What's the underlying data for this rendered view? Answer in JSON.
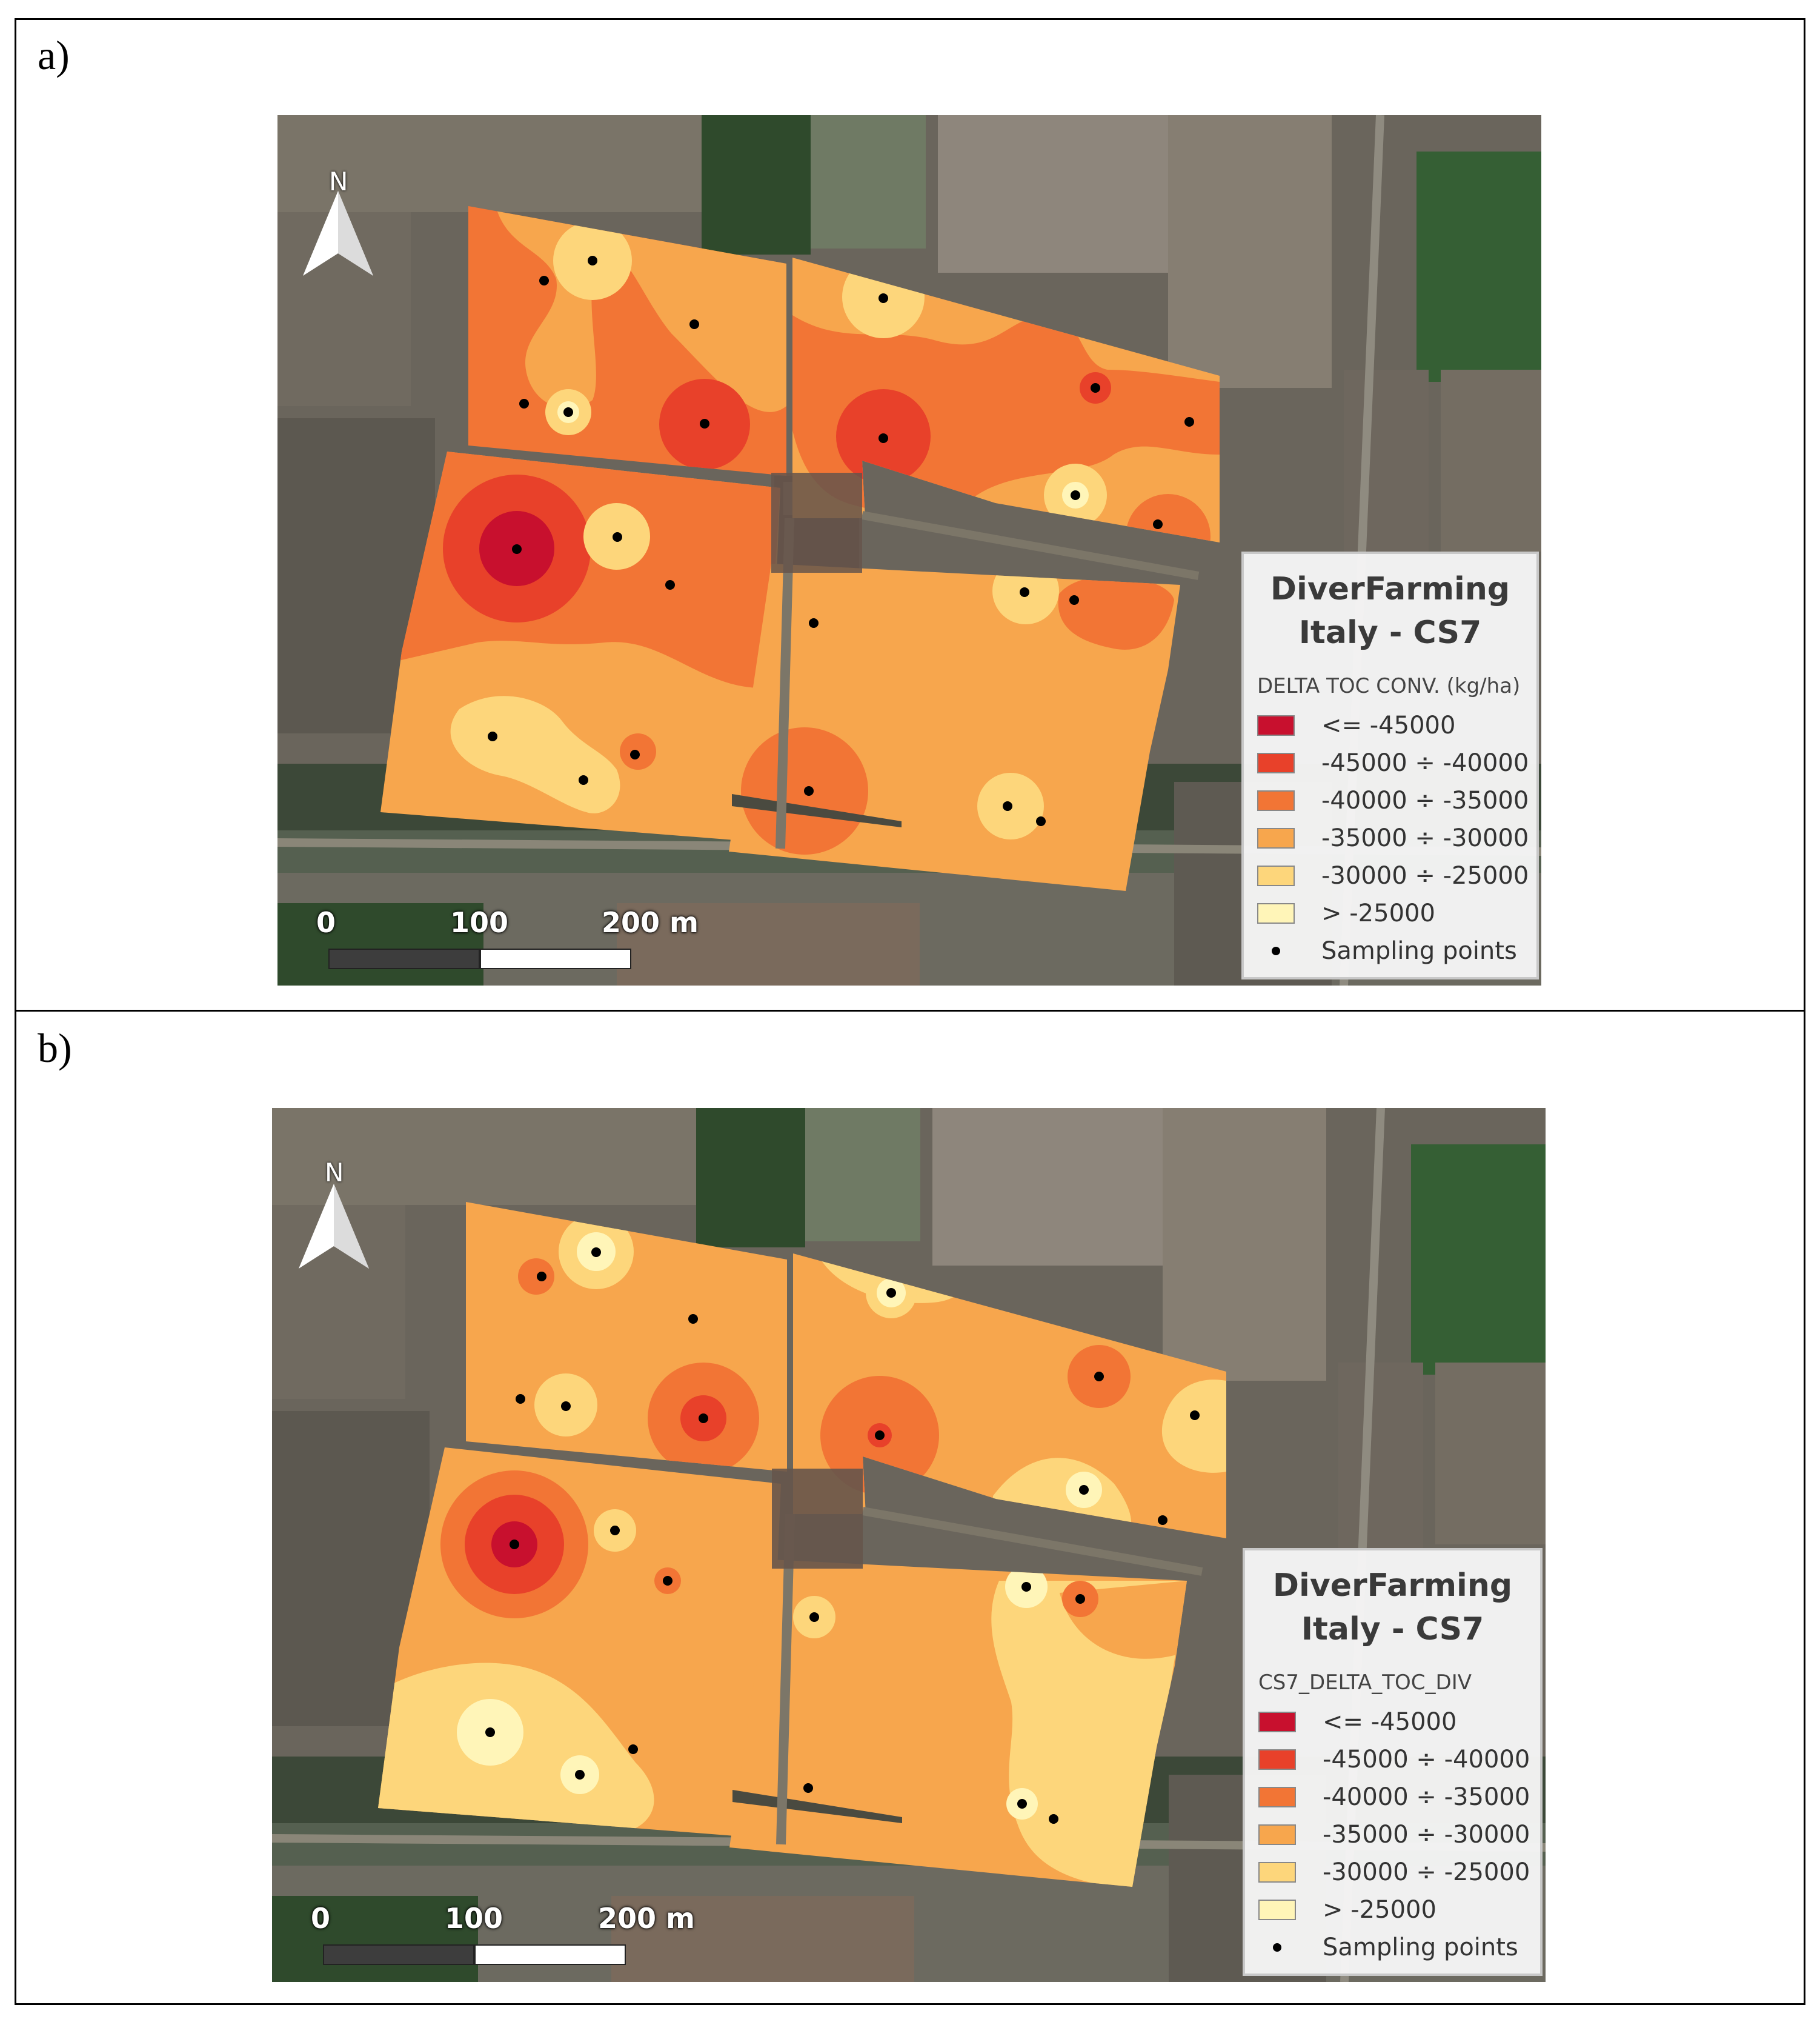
{
  "panels": [
    {
      "label": "a)",
      "legend": {
        "title_line1": "DiverFarming",
        "title_line2": "Italy - CS7",
        "field": "DELTA TOC CONV. (kg/ha)",
        "classes": [
          {
            "label": "<= -45000",
            "color": "#c8102e"
          },
          {
            "label": "-45000 ÷ -40000",
            "color": "#e8412a"
          },
          {
            "label": "-40000 ÷ -35000",
            "color": "#f27535"
          },
          {
            "label": "-35000 ÷ -30000",
            "color": "#f7a64d"
          },
          {
            "label": "-30000 ÷ -25000",
            "color": "#fdd67b"
          },
          {
            "label": "> -25000",
            "color": "#fff5b8"
          }
        ],
        "points_label": "Sampling points"
      },
      "scale": {
        "t0": "0",
        "t1": "100",
        "t2": "200 m"
      },
      "north": "N"
    },
    {
      "label": "b)",
      "legend": {
        "title_line1": "DiverFarming",
        "title_line2": "Italy - CS7",
        "field": "CS7_DELTA_TOC_DIV",
        "classes": [
          {
            "label": "<= -45000",
            "color": "#c8102e"
          },
          {
            "label": "-45000 ÷ -40000",
            "color": "#e8412a"
          },
          {
            "label": "-40000 ÷ -35000",
            "color": "#f27535"
          },
          {
            "label": "-35000 ÷ -30000",
            "color": "#f7a64d"
          },
          {
            "label": "-30000 ÷ -25000",
            "color": "#fdd67b"
          },
          {
            "label": "> -25000",
            "color": "#fff5b8"
          }
        ],
        "points_label": "Sampling points"
      },
      "scale": {
        "t0": "0",
        "t1": "100",
        "t2": "200 m"
      },
      "north": "N"
    }
  ]
}
